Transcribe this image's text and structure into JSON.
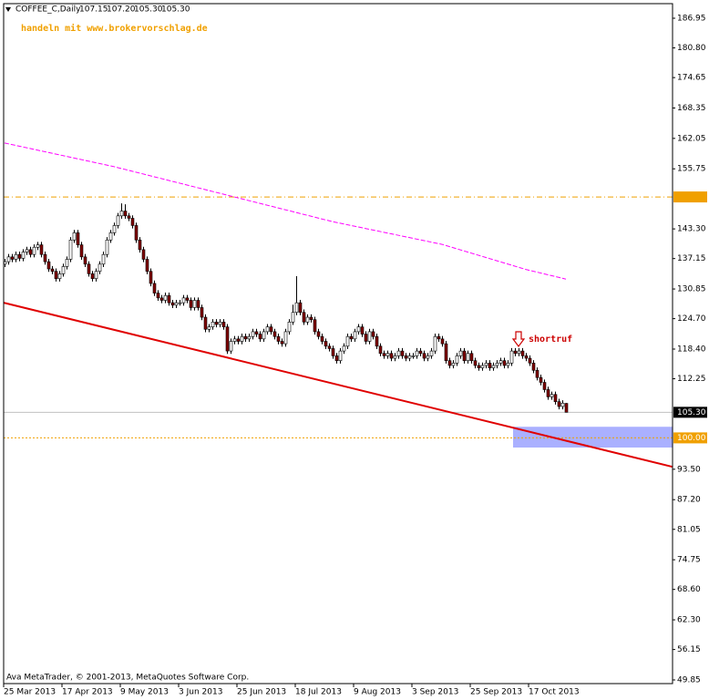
{
  "chart_data": {
    "type": "candlestick",
    "symbol": "COFFEE_C,Daily",
    "last_labels": [
      "107.15",
      "107.20",
      "105.30",
      "105.30"
    ],
    "promo": "handeln mit www.brokervorschlag.de",
    "annotation": "shortruf",
    "copyright": "Ava MetaTrader, © 2001-2013, MetaQuotes Software Corp.",
    "up_color": "#ffffff",
    "down_color": "#800000",
    "wick_color": "#000000",
    "ylim": [
      49.09,
      189.97
    ],
    "yticks": [
      186.95,
      {
        "value": 180.8,
        "label": "180.80"
      },
      174.65,
      168.35,
      162.05,
      155.75,
      {
        "value": 143.3,
        "label": "143.30"
      },
      137.15,
      130.85,
      {
        "value": 124.7,
        "label": "124.70"
      },
      {
        "value": 118.4,
        "label": "118.40"
      },
      112.25,
      {
        "value": 93.5,
        "label": "93.50"
      },
      {
        "value": 87.2,
        "label": "87.20"
      },
      81.05,
      74.75,
      {
        "value": 68.6,
        "label": "68.60"
      },
      {
        "value": 62.3,
        "label": "62.30"
      },
      56.15,
      49.85
    ],
    "categories": [
      "25 Mar 2013",
      null,
      null,
      null,
      null,
      null,
      null,
      null,
      null,
      null,
      null,
      null,
      null,
      null,
      null,
      null,
      "17 Apr 2013",
      null,
      null,
      null,
      null,
      null,
      null,
      null,
      null,
      null,
      null,
      null,
      null,
      null,
      null,
      null,
      "9 May 2013",
      null,
      null,
      null,
      null,
      null,
      null,
      null,
      null,
      null,
      null,
      null,
      null,
      null,
      null,
      null,
      "3 Jun 2013",
      null,
      null,
      null,
      null,
      null,
      null,
      null,
      null,
      null,
      null,
      null,
      null,
      null,
      null,
      null,
      "25 Jun 2013",
      null,
      null,
      null,
      null,
      null,
      null,
      null,
      null,
      null,
      null,
      null,
      null,
      null,
      null,
      null,
      "18 Jul 2013",
      null,
      null,
      null,
      null,
      null,
      null,
      null,
      null,
      null,
      null,
      null,
      null,
      null,
      null,
      null,
      "9 Aug 2013",
      null,
      null,
      null,
      null,
      null,
      null,
      null,
      null,
      null,
      null,
      null,
      null,
      null,
      null,
      null,
      "3 Sep 2013",
      null,
      null,
      null,
      null,
      null,
      null,
      null,
      null,
      null,
      null,
      null,
      null,
      null,
      null,
      null,
      "25 Sep 2013",
      null,
      null,
      null,
      null,
      null,
      null,
      null,
      null,
      null,
      null,
      null,
      null,
      null,
      null,
      null,
      "17 Oct 2013",
      null,
      null,
      null,
      null,
      null,
      null,
      null,
      null,
      null,
      null
    ],
    "ohlc": [
      [
        136,
        137.1,
        135.4,
        136.5
      ],
      [
        136.5,
        138.1,
        135.9,
        137.5
      ],
      [
        137.5,
        138.1,
        136.4,
        137
      ],
      [
        137,
        138.6,
        136.4,
        138
      ],
      [
        138,
        138.6,
        136.6,
        137.2
      ],
      [
        137.2,
        139.1,
        136.6,
        138.5
      ],
      [
        138.5,
        139.6,
        137.9,
        139
      ],
      [
        139,
        139.6,
        137.4,
        138
      ],
      [
        138,
        140.1,
        137.4,
        139.5
      ],
      [
        139.5,
        140.6,
        138.9,
        140
      ],
      [
        140,
        140.6,
        137.4,
        138
      ],
      [
        138,
        138.6,
        135.9,
        136.5
      ],
      [
        136.5,
        137.1,
        134.4,
        135
      ],
      [
        135,
        135.6,
        133.9,
        134.5
      ],
      [
        134.5,
        135.1,
        132.4,
        133
      ],
      [
        133,
        134.6,
        132.4,
        134
      ],
      [
        134,
        136.1,
        133.4,
        135.5
      ],
      [
        135.5,
        137.6,
        134.9,
        137
      ],
      [
        137,
        141.6,
        136.4,
        141
      ],
      [
        141,
        143.1,
        140.4,
        142.5
      ],
      [
        142.5,
        143.1,
        139.4,
        140
      ],
      [
        140,
        140.6,
        136.9,
        137.5
      ],
      [
        137.5,
        138.1,
        135.4,
        136
      ],
      [
        136,
        136.6,
        133.4,
        134
      ],
      [
        134,
        134.6,
        132.4,
        133
      ],
      [
        133,
        135.1,
        132.4,
        134.5
      ],
      [
        134.5,
        136.6,
        133.9,
        136
      ],
      [
        136,
        138.6,
        135.4,
        138
      ],
      [
        138,
        141.6,
        137.4,
        141
      ],
      [
        141,
        143.1,
        140.4,
        142.5
      ],
      [
        142.5,
        144.6,
        141.9,
        144
      ],
      [
        144,
        146.6,
        143.4,
        146
      ],
      [
        146,
        148.6,
        145.4,
        147
      ],
      [
        147,
        148.4,
        145.4,
        146
      ],
      [
        146,
        146.6,
        144.9,
        145.5
      ],
      [
        145.5,
        146.1,
        143.4,
        144
      ],
      [
        144,
        144.6,
        140.4,
        141
      ],
      [
        141,
        141.6,
        138.4,
        139
      ],
      [
        139,
        139.6,
        136.4,
        137
      ],
      [
        137,
        137.6,
        133.9,
        134.5
      ],
      [
        134.5,
        135.1,
        131.4,
        132
      ],
      [
        132,
        132.6,
        129.4,
        130
      ],
      [
        130,
        130.6,
        128.4,
        129
      ],
      [
        129,
        129.6,
        127.9,
        128.5
      ],
      [
        128.5,
        130.1,
        127.9,
        129.5
      ],
      [
        129.5,
        130.1,
        127.4,
        128
      ],
      [
        128,
        128.6,
        126.9,
        127.5
      ],
      [
        127.5,
        128.6,
        126.9,
        128
      ],
      [
        128,
        128.6,
        127.4,
        128
      ],
      [
        128,
        129.6,
        127.4,
        129
      ],
      [
        129,
        129.6,
        127.9,
        128.5
      ],
      [
        128.5,
        129.1,
        126.4,
        127
      ],
      [
        127,
        129.1,
        126.4,
        128.5
      ],
      [
        128.5,
        129.1,
        126.4,
        127
      ],
      [
        127,
        127.6,
        124.4,
        125
      ],
      [
        125,
        125.6,
        121.9,
        122.5
      ],
      [
        122.5,
        123.6,
        121.9,
        123
      ],
      [
        123,
        124.6,
        122.4,
        124
      ],
      [
        124,
        124.6,
        122.9,
        123.5
      ],
      [
        123.5,
        124.6,
        122.9,
        124
      ],
      [
        124,
        124.6,
        122.4,
        123
      ],
      [
        123,
        123.6,
        117.4,
        118
      ],
      [
        118,
        120.6,
        117.4,
        120
      ],
      [
        120,
        121.1,
        119.4,
        120.5
      ],
      [
        120.5,
        121.1,
        119.4,
        120
      ],
      [
        120,
        121.6,
        119.4,
        121
      ],
      [
        121,
        121.6,
        119.9,
        120.5
      ],
      [
        120.5,
        121.6,
        119.9,
        121
      ],
      [
        121,
        122.6,
        120.4,
        122
      ],
      [
        122,
        122.6,
        120.9,
        121.5
      ],
      [
        121.5,
        122.1,
        119.9,
        120.5
      ],
      [
        120.5,
        122.6,
        119.9,
        122
      ],
      [
        122,
        123.6,
        121.4,
        123
      ],
      [
        123,
        123.6,
        121.4,
        122
      ],
      [
        122,
        122.6,
        120.4,
        121
      ],
      [
        121,
        121.6,
        119.4,
        120
      ],
      [
        120,
        120.6,
        118.9,
        119.5
      ],
      [
        119.5,
        122.6,
        118.9,
        122
      ],
      [
        122,
        124.6,
        121.4,
        124
      ],
      [
        124,
        127.6,
        123.4,
        126
      ],
      [
        126,
        133.5,
        125.4,
        128
      ],
      [
        128,
        128.6,
        125.4,
        126
      ],
      [
        126,
        126.6,
        123.4,
        124
      ],
      [
        124,
        125.6,
        123.4,
        125
      ],
      [
        125,
        125.6,
        123.9,
        124.5
      ],
      [
        124.5,
        125.1,
        121.4,
        122
      ],
      [
        122,
        122.6,
        120.4,
        121
      ],
      [
        121,
        121.6,
        119.4,
        120
      ],
      [
        120,
        120.6,
        118.4,
        119
      ],
      [
        119,
        119.6,
        117.9,
        118.5
      ],
      [
        118.5,
        119.1,
        116.4,
        117
      ],
      [
        117,
        117.6,
        115.4,
        116
      ],
      [
        116,
        118.6,
        115.4,
        118
      ],
      [
        118,
        119.6,
        117.4,
        119
      ],
      [
        119,
        121.6,
        118.4,
        121
      ],
      [
        121,
        121.6,
        119.9,
        120.5
      ],
      [
        120.5,
        122.6,
        119.9,
        122
      ],
      [
        122,
        123.6,
        121.4,
        123
      ],
      [
        123,
        123.6,
        120.9,
        121.5
      ],
      [
        121.5,
        122.1,
        119.4,
        120
      ],
      [
        120,
        122.6,
        119.4,
        122
      ],
      [
        122,
        122.6,
        120.4,
        121
      ],
      [
        121,
        121.6,
        118.4,
        119
      ],
      [
        119,
        119.6,
        116.9,
        117.5
      ],
      [
        117.5,
        118.1,
        116.4,
        117
      ],
      [
        117,
        118.1,
        116.4,
        117.5
      ],
      [
        117.5,
        118.1,
        115.9,
        116.5
      ],
      [
        116.5,
        117.6,
        115.9,
        117
      ],
      [
        117,
        118.6,
        116.4,
        118
      ],
      [
        118,
        118.6,
        116.4,
        117
      ],
      [
        117,
        117.6,
        115.9,
        116.5
      ],
      [
        116.5,
        117.6,
        115.9,
        117
      ],
      [
        117,
        117.6,
        116.4,
        117
      ],
      [
        117,
        118.6,
        116.4,
        118
      ],
      [
        118,
        118.6,
        116.9,
        117.5
      ],
      [
        117.5,
        118.1,
        115.9,
        116.5
      ],
      [
        116.5,
        117.6,
        115.9,
        117
      ],
      [
        117,
        118.6,
        116.4,
        118
      ],
      [
        118,
        121.6,
        117.4,
        121
      ],
      [
        121,
        121.6,
        119.9,
        120.5
      ],
      [
        120.5,
        121.1,
        118.9,
        119.5
      ],
      [
        119.5,
        120.1,
        115.4,
        116
      ],
      [
        116,
        116.6,
        114.4,
        115
      ],
      [
        115,
        116.1,
        114.4,
        115.5
      ],
      [
        115.5,
        117.6,
        114.9,
        117
      ],
      [
        117,
        118.6,
        116.4,
        118
      ],
      [
        118,
        118.6,
        115.4,
        116
      ],
      [
        116,
        118.1,
        115.4,
        117.5
      ],
      [
        117.5,
        118.1,
        115.4,
        116
      ],
      [
        116,
        116.6,
        114.4,
        115
      ],
      [
        115,
        115.6,
        113.9,
        114.5
      ],
      [
        114.5,
        115.6,
        113.9,
        115
      ],
      [
        115,
        116.1,
        114.4,
        115.5
      ],
      [
        115.5,
        116.1,
        113.9,
        114.5
      ],
      [
        114.5,
        115.6,
        113.9,
        115
      ],
      [
        115,
        116.1,
        114.4,
        115.5
      ],
      [
        115.5,
        116.6,
        114.9,
        116
      ],
      [
        116,
        116.6,
        114.4,
        115
      ],
      [
        115,
        116.1,
        114.4,
        115.5
      ],
      [
        115.5,
        118.6,
        114.9,
        118
      ],
      [
        118,
        118.6,
        116.9,
        117.5
      ],
      [
        117.5,
        118.6,
        116.9,
        118
      ],
      [
        118,
        118.6,
        116.4,
        117
      ],
      [
        117,
        117.6,
        115.9,
        116.5
      ],
      [
        116.5,
        117.1,
        114.9,
        115.5
      ],
      [
        115.5,
        116.1,
        113.4,
        114
      ],
      [
        114,
        114.6,
        111.9,
        112.5
      ],
      [
        112.5,
        113.1,
        110.9,
        111.5
      ],
      [
        111.5,
        112.1,
        109.4,
        110
      ],
      [
        110,
        110.6,
        107.9,
        108.5
      ],
      [
        108.5,
        109.6,
        107.9,
        109
      ],
      [
        109,
        109.6,
        106.9,
        107.5
      ],
      [
        107.5,
        108.1,
        105.9,
        106.5
      ],
      [
        106.5,
        107.8,
        105.9,
        107.2
      ],
      [
        107.15,
        107.2,
        105.3,
        105.3
      ]
    ],
    "ma": {
      "color": "#ff00ff",
      "x": [
        0,
        30,
        60,
        90,
        120,
        143,
        154
      ],
      "values": [
        161.1,
        156.2,
        150.5,
        144.8,
        140.1,
        134.9,
        132.9
      ]
    },
    "trendline": {
      "color": "#e00000",
      "x": [
        -0.25,
        183.25
      ],
      "values": [
        128.0,
        94.0
      ]
    },
    "zone": {
      "color": "#aab0ff",
      "x": [
        139.5,
        183.25
      ],
      "y": [
        102.3,
        98.0
      ]
    },
    "price_lines": [
      {
        "value": 149.92,
        "color": "#f0a000",
        "label_bg": "#f0a000",
        "label_color": "#ffffff",
        "style": "dashdot"
      },
      {
        "value": 100,
        "label": "100.00",
        "color": "#f0a000",
        "label_bg": "#f0a000",
        "label_color": "#ffffff",
        "style": "dotted"
      },
      {
        "value": 105.3,
        "label": "105.30",
        "color": "#c0c0c0",
        "label_bg": "#000000",
        "label_color": "#ffffff",
        "style": "solid"
      }
    ]
  }
}
